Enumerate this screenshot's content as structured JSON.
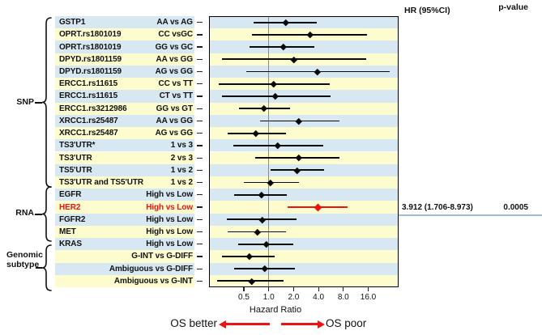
{
  "header": {
    "hr_ci": "HR (95%CI)",
    "p_value": "p-value"
  },
  "groups": [
    {
      "label": "SNP"
    },
    {
      "label": "RNA"
    },
    {
      "label": "Genomic subtype"
    }
  ],
  "axis": {
    "tick_labels": [
      "0.5",
      "1.0",
      "2.0",
      "4.0",
      "8.0",
      "16.0"
    ],
    "tick_values": [
      0.5,
      1,
      2,
      4,
      8,
      16
    ],
    "xlabel": "Hazard Ratio"
  },
  "footer": {
    "left": "OS better",
    "right": "OS poor"
  },
  "colors": {
    "stripe_blue": "#d8e8f2",
    "stripe_yellow": "#fdfccf",
    "highlight_red": "#ed1111",
    "marker_black": "#0a0a0a",
    "refline_gray": "#8c8c8c",
    "annotation_rule": "#a3bed2"
  },
  "chart_data": {
    "type": "scatter",
    "subtype": "forest-plot",
    "xlabel": "Hazard Ratio",
    "x_scale": "log2",
    "x_ticks": [
      0.5,
      1.0,
      2.0,
      4.0,
      8.0,
      16.0
    ],
    "grid": false,
    "reference_line": 1.0,
    "rows": [
      {
        "group": "SNP",
        "gene": "GSTP1",
        "comparison": "AA vs AG",
        "ci_low": 0.65,
        "hr": 1.6,
        "ci_high": 3.8
      },
      {
        "group": "SNP",
        "gene": "OPRT.rs1801019",
        "comparison": "CC vsGC",
        "ci_low": 0.63,
        "hr": 3.2,
        "ci_high": 15.5
      },
      {
        "group": "SNP",
        "gene": "OPRT.rs1801019",
        "comparison": "GG vs GC",
        "ci_low": 0.59,
        "hr": 1.5,
        "ci_high": 3.6
      },
      {
        "group": "SNP",
        "gene": "DPYD.rs1801159",
        "comparison": "AA vs GG",
        "ci_low": 0.27,
        "hr": 2.0,
        "ci_high": 15.0
      },
      {
        "group": "SNP",
        "gene": "DPYD.rs1801159",
        "comparison": "AG vs GG",
        "ci_low": 0.54,
        "hr": 3.9,
        "ci_high": 29.0
      },
      {
        "group": "SNP",
        "gene": "ERCC1.rs11615",
        "comparison": "CC vs TT",
        "ci_low": 0.25,
        "hr": 1.15,
        "ci_high": 5.5
      },
      {
        "group": "SNP",
        "gene": "ERCC1.rs11615",
        "comparison": "CT vs TT",
        "ci_low": 0.27,
        "hr": 1.2,
        "ci_high": 5.6
      },
      {
        "group": "SNP",
        "gene": "ERCC1.rs3212986",
        "comparison": "GG vs GT",
        "ci_low": 0.44,
        "hr": 0.87,
        "ci_high": 1.8
      },
      {
        "group": "SNP",
        "gene": "XRCC1.rs25487",
        "comparison": "AA vs GG",
        "ci_low": 0.78,
        "hr": 2.3,
        "ci_high": 7.2
      },
      {
        "group": "SNP",
        "gene": "XRCC1.rs25487",
        "comparison": "AG vs GG",
        "ci_low": 0.32,
        "hr": 0.7,
        "ci_high": 1.6
      },
      {
        "group": "SNP",
        "gene": "TS3'UTR*",
        "comparison": "1 vs 3",
        "ci_low": 0.37,
        "hr": 1.28,
        "ci_high": 4.6
      },
      {
        "group": "SNP",
        "gene": "TS3'UTR",
        "comparison": "2 vs 3",
        "ci_low": 0.68,
        "hr": 2.3,
        "ci_high": 7.2
      },
      {
        "group": "SNP",
        "gene": "TS5'UTR",
        "comparison": "1 vs 2",
        "ci_low": 1.05,
        "hr": 2.2,
        "ci_high": 4.7
      },
      {
        "group": "SNP",
        "gene": "TS3'UTR and TS5'UTR",
        "comparison": "1 vs 2",
        "ci_low": 0.5,
        "hr": 1.05,
        "ci_high": 2.3
      },
      {
        "group": "RNA",
        "gene": "EGFR",
        "comparison": "High vs Low",
        "ci_low": 0.38,
        "hr": 0.81,
        "ci_high": 1.65
      },
      {
        "group": "RNA",
        "gene": "HER2",
        "comparison": "High vs Low",
        "ci_low": 1.706,
        "hr": 3.912,
        "ci_high": 8.973,
        "highlight": true,
        "hr_ci_label": "3.912 (1.706-8.973)",
        "p_value": "0.0005"
      },
      {
        "group": "RNA",
        "gene": "FGFR2",
        "comparison": "High vs Low",
        "ci_low": 0.31,
        "hr": 0.83,
        "ci_high": 2.15
      },
      {
        "group": "RNA",
        "gene": "MET",
        "comparison": "High vs Low",
        "ci_low": 0.32,
        "hr": 0.73,
        "ci_high": 1.6
      },
      {
        "group": "RNA",
        "gene": "KRAS",
        "comparison": "High vs Low",
        "ci_low": 0.43,
        "hr": 0.93,
        "ci_high": 1.97
      },
      {
        "group": "Genomic subtype",
        "gene": "",
        "comparison": "G-INT vs G-DIFF",
        "ci_low": 0.27,
        "hr": 0.58,
        "ci_high": 1.17
      },
      {
        "group": "Genomic subtype",
        "gene": "",
        "comparison": "Ambiguous vs G-DIFF",
        "ci_low": 0.38,
        "hr": 0.89,
        "ci_high": 2.07
      },
      {
        "group": "Genomic subtype",
        "gene": "",
        "comparison": "Ambiguous vs G-INT",
        "ci_low": 0.24,
        "hr": 0.62,
        "ci_high": 1.5
      }
    ]
  }
}
